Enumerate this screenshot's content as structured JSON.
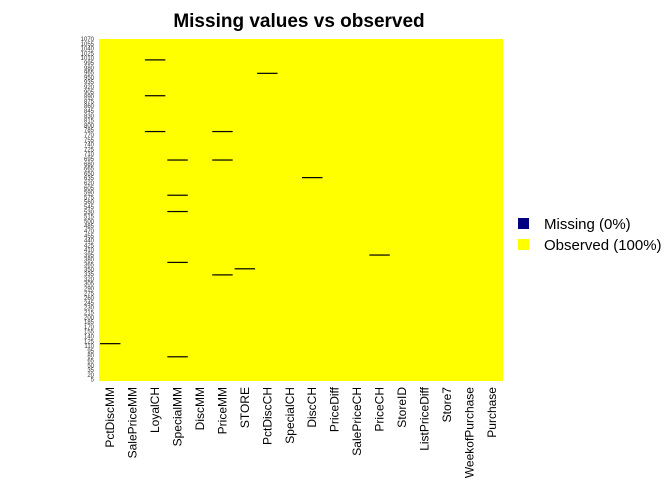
{
  "chart_data": {
    "type": "heatmap",
    "title": "Missing values vs observed",
    "y_ticks": [
      5,
      20,
      35,
      50,
      65,
      80,
      95,
      110,
      125,
      140,
      155,
      170,
      185,
      200,
      215,
      230,
      245,
      260,
      275,
      290,
      305,
      320,
      335,
      350,
      365,
      380,
      395,
      410,
      425,
      440,
      455,
      470,
      485,
      500,
      515,
      530,
      545,
      560,
      575,
      590,
      605,
      620,
      635,
      650,
      665,
      680,
      695,
      710,
      725,
      740,
      755,
      770,
      785,
      800,
      815,
      830,
      845,
      860,
      875,
      890,
      905,
      920,
      935,
      950,
      965,
      980,
      995,
      1010,
      1025,
      1040,
      1055,
      1070
    ],
    "ylim": [
      1,
      1070
    ],
    "columns": [
      "PctDiscMM",
      "SalePriceMM",
      "LoyalCH",
      "SpecialMM",
      "DiscMM",
      "PriceMM",
      "STORE",
      "PctDiscCH",
      "SpecialCH",
      "DiscCH",
      "PriceDiff",
      "SalePriceCH",
      "PriceCH",
      "StoreID",
      "ListPriceDiff",
      "Store7",
      "WeekofPurchase",
      "Purchase"
    ],
    "missing": [
      {
        "column": "PctDiscMM",
        "rows": [
          118
        ]
      },
      {
        "column": "LoyalCH",
        "rows": [
          1005,
          893,
          781
        ]
      },
      {
        "column": "SpecialMM",
        "rows": [
          692,
          582,
          531,
          372,
          77
        ]
      },
      {
        "column": "PriceMM",
        "rows": [
          781,
          692,
          333
        ]
      },
      {
        "column": "STORE",
        "rows": [
          352
        ]
      },
      {
        "column": "PctDiscCH",
        "rows": [
          963
        ]
      },
      {
        "column": "DiscCH",
        "rows": [
          637
        ]
      },
      {
        "column": "PriceCH",
        "rows": [
          395
        ]
      }
    ],
    "legend": [
      {
        "label": "Missing (0%)",
        "color": "#000080"
      },
      {
        "label": "Observed (100%)",
        "color": "#FFFF00"
      }
    ],
    "colors": {
      "missing": "#000080",
      "observed": "#FFFF00"
    },
    "legend_position": "right"
  }
}
